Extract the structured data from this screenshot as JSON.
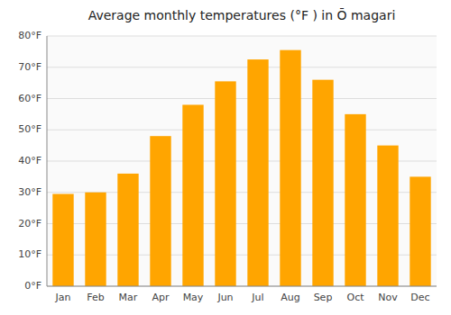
{
  "chart_data": {
    "type": "bar",
    "title": "Average monthly temperatures (°F ) in Ō magari",
    "categories": [
      "Jan",
      "Feb",
      "Mar",
      "Apr",
      "May",
      "Jun",
      "Jul",
      "Aug",
      "Sep",
      "Oct",
      "Nov",
      "Dec"
    ],
    "values": [
      29.5,
      30.0,
      36.0,
      48.0,
      58.0,
      65.5,
      72.5,
      75.5,
      66.0,
      55.0,
      45.0,
      35.0
    ],
    "color": "#FFA500",
    "ylim": [
      0,
      80
    ],
    "yticks": [
      {
        "value": 0,
        "label": "0°F"
      },
      {
        "value": 10,
        "label": "10°F"
      },
      {
        "value": 20,
        "label": "20°F"
      },
      {
        "value": 30,
        "label": "30°F"
      },
      {
        "value": 40,
        "label": "40°F"
      },
      {
        "value": 50,
        "label": "50°F"
      },
      {
        "value": 60,
        "label": "60°F"
      },
      {
        "value": 70,
        "label": "70°F"
      },
      {
        "value": 80,
        "label": "80°F"
      }
    ],
    "grid": true
  }
}
